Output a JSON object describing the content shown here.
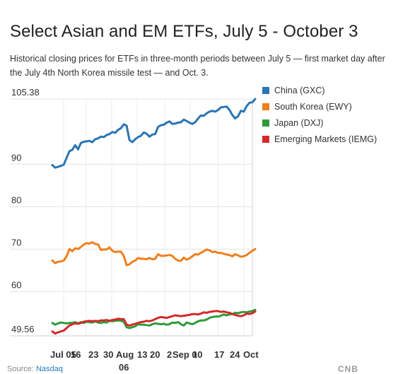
{
  "chart_data": {
    "type": "line",
    "title": "Select Asian and EM ETFs, July 5 - October 3",
    "subtitle": "Historical closing prices for ETFs in three-month periods between July 5 — first market day after the July 4th North Korea missile test — and Oct. 3.",
    "y_tick_labels": [
      "105.38",
      "90",
      "80",
      "70",
      "60",
      "49.56"
    ],
    "y_tick_values": [
      105.38,
      90,
      80,
      70,
      60,
      49.56
    ],
    "ylim": [
      49.56,
      105.38
    ],
    "x_tick_labels": [
      "Jul 05",
      "16",
      "23",
      "30",
      "Aug 06",
      "13",
      "20",
      "27",
      "Sep 03",
      "10",
      "17",
      "24",
      "Oct"
    ],
    "x_tick_display": [
      "Jul 05",
      "16",
      "23",
      "30",
      "Aug",
      "13",
      "20",
      "2",
      "Sep 0",
      "10",
      "17",
      "24",
      "Oct",
      "06"
    ],
    "series": [
      {
        "name": "China (GXC)",
        "color": "#2a75b3",
        "values": [
          89.8,
          89.2,
          89.4,
          89.6,
          89.9,
          91.5,
          93.1,
          93.4,
          94.5,
          93.5,
          95.0,
          95.3,
          95.4,
          95.5,
          95.2,
          95.9,
          96.1,
          96.5,
          96.4,
          96.9,
          97.1,
          97.6,
          97.4,
          98.1,
          98.5,
          99.4,
          99.1,
          95.7,
          95.2,
          95.9,
          96.4,
          96.7,
          97.5,
          97.2,
          96.5,
          97.0,
          97.1,
          98.8,
          99.2,
          99.3,
          99.8,
          100.1,
          99.5,
          99.6,
          99.8,
          99.9,
          100.5,
          100.2,
          99.8,
          99.5,
          99.9,
          100.8,
          101.5,
          101.4,
          102.0,
          102.4,
          102.6,
          102.4,
          102.8,
          103.4,
          103.5,
          103.6,
          102.8,
          101.6,
          100.8,
          101.3,
          102.6,
          102.4,
          103.7,
          104.5,
          104.6,
          105.38
        ]
      },
      {
        "name": "South Korea (EWY)",
        "color": "#f07f1d",
        "values": [
          67.3,
          66.7,
          67.0,
          67.1,
          67.3,
          68.3,
          70.0,
          69.5,
          70.2,
          70.0,
          70.5,
          71.1,
          71.4,
          71.3,
          71.6,
          71.2,
          71.1,
          69.8,
          69.9,
          69.9,
          70.4,
          69.6,
          69.3,
          69.4,
          69.4,
          68.4,
          66.2,
          66.4,
          67.0,
          67.3,
          67.9,
          67.7,
          67.7,
          67.6,
          67.9,
          67.6,
          67.7,
          68.8,
          68.4,
          68.4,
          68.5,
          68.6,
          68.4,
          67.7,
          67.3,
          67.2,
          68.0,
          67.5,
          67.8,
          68.3,
          68.8,
          68.7,
          69.1,
          69.5,
          69.9,
          69.7,
          69.3,
          69.4,
          69.1,
          69.1,
          68.9,
          68.7,
          68.6,
          68.3,
          68.8,
          68.5,
          68.2,
          68.3,
          68.6,
          69.1,
          69.6,
          70.0
        ]
      },
      {
        "name": "Japan (DXJ)",
        "color": "#2f9a3b",
        "values": [
          52.6,
          52.2,
          52.5,
          52.7,
          52.6,
          52.5,
          52.6,
          52.6,
          52.8,
          52.5,
          52.8,
          52.6,
          52.9,
          52.8,
          52.7,
          53.0,
          52.7,
          52.6,
          52.8,
          52.7,
          53.1,
          53.0,
          53.1,
          53.2,
          53.1,
          52.9,
          51.6,
          51.4,
          51.6,
          51.8,
          52.3,
          52.2,
          52.2,
          52.1,
          52.0,
          52.3,
          52.5,
          52.4,
          52.3,
          52.4,
          52.2,
          52.3,
          52.7,
          52.6,
          52.8,
          52.3,
          52.0,
          52.7,
          52.5,
          52.3,
          52.6,
          53.0,
          53.2,
          53.2,
          53.4,
          53.8,
          54.0,
          54.1,
          54.1,
          54.3,
          54.6,
          54.4,
          54.6,
          54.7,
          55.0,
          54.9,
          55.1,
          55.2,
          55.1,
          55.3,
          55.4,
          55.7
        ]
      },
      {
        "name": "Emerging Markets (IEMG)",
        "color": "#d3292a",
        "values": [
          50.6,
          50.1,
          50.4,
          50.6,
          50.8,
          51.4,
          52.0,
          52.3,
          52.5,
          52.4,
          52.6,
          52.9,
          53.0,
          53.1,
          53.0,
          53.1,
          53.0,
          53.2,
          53.2,
          53.3,
          53.1,
          53.3,
          53.4,
          53.6,
          53.5,
          53.5,
          52.2,
          52.0,
          52.2,
          52.4,
          52.6,
          52.8,
          52.9,
          53.1,
          53.0,
          53.2,
          53.5,
          53.8,
          54.0,
          53.9,
          53.8,
          54.0,
          54.2,
          54.4,
          54.3,
          54.2,
          54.3,
          54.4,
          54.5,
          54.7,
          54.7,
          54.6,
          54.8,
          55.1,
          55.0,
          55.2,
          55.3,
          55.4,
          55.4,
          55.2,
          55.3,
          55.1,
          55.0,
          54.7,
          54.5,
          54.3,
          54.2,
          54.4,
          54.8,
          54.7,
          54.9,
          55.3
        ]
      }
    ],
    "grid": true,
    "legend_position": "right"
  },
  "source": {
    "label": "Source:",
    "name": "Nasdaq"
  },
  "logo_text": "CNB",
  "icons": {
    "logo": "peacock-logo-icon"
  }
}
